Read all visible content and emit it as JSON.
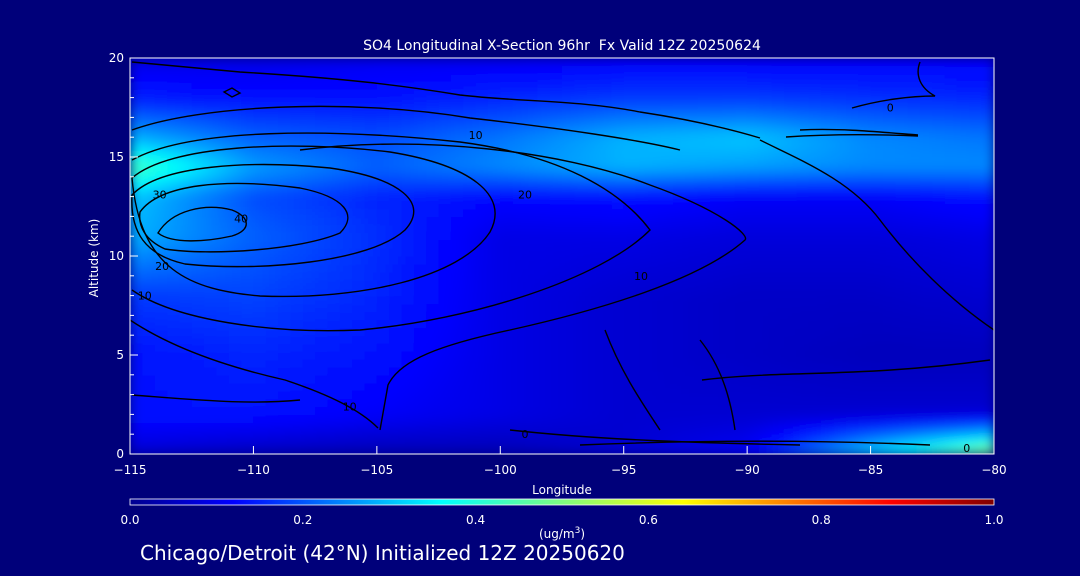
{
  "colors": {
    "background": "#00007a",
    "text": "#ffffff",
    "contour": "#000000"
  },
  "caption": "Chicago/Detroit (42°N) Initialized 12Z 20250620",
  "chart_data": {
    "type": "heatmap",
    "title": "SO4 Longitudinal X-Section 96hr  Fx Valid 12Z 20250624",
    "xlabel": "Longitude",
    "ylabel": "Altitude (km)",
    "xlim": [
      -115,
      -80
    ],
    "ylim": [
      0,
      20
    ],
    "x_ticks": [
      -115,
      -110,
      -105,
      -100,
      -95,
      -90,
      -85,
      -80
    ],
    "y_ticks": [
      0,
      5,
      10,
      15,
      20
    ],
    "colorbar": {
      "label_base": "(ug/m",
      "label_sup": "3",
      "label_end": ")",
      "range": [
        0.0,
        1.0
      ],
      "ticks": [
        "0.0",
        "0.2",
        "0.4",
        "0.6",
        "0.8",
        "1.0"
      ],
      "colormap": "jet"
    },
    "contour_labels": [
      {
        "x": -110.5,
        "y": 11.7,
        "text": "40"
      },
      {
        "x": -113.8,
        "y": 12.9,
        "text": "30"
      },
      {
        "x": -113.7,
        "y": 9.3,
        "text": "20"
      },
      {
        "x": -114.4,
        "y": 7.8,
        "text": "10"
      },
      {
        "x": -99.0,
        "y": 12.9,
        "text": "20"
      },
      {
        "x": -94.3,
        "y": 8.8,
        "text": "10"
      },
      {
        "x": -101.0,
        "y": 15.9,
        "text": "10"
      },
      {
        "x": -84.2,
        "y": 17.3,
        "text": "0"
      },
      {
        "x": -106.1,
        "y": 2.2,
        "text": "10"
      },
      {
        "x": -99.0,
        "y": 0.8,
        "text": "0"
      },
      {
        "x": -81.1,
        "y": 0.1,
        "text": "0"
      }
    ],
    "concentration_field": {
      "x": [
        -115,
        -110,
        -105,
        -100,
        -95,
        -90,
        -85,
        -80
      ],
      "y": [
        0,
        2,
        5,
        8,
        11,
        13,
        14.5,
        16,
        18,
        20
      ],
      "z": [
        [
          0.08,
          0.06,
          0.05,
          0.05,
          0.08,
          0.12,
          0.35,
          0.55
        ],
        [
          0.14,
          0.14,
          0.12,
          0.1,
          0.08,
          0.08,
          0.08,
          0.08
        ],
        [
          0.14,
          0.16,
          0.14,
          0.1,
          0.08,
          0.07,
          0.06,
          0.06
        ],
        [
          0.18,
          0.19,
          0.16,
          0.1,
          0.08,
          0.07,
          0.07,
          0.08
        ],
        [
          0.3,
          0.22,
          0.17,
          0.1,
          0.1,
          0.09,
          0.09,
          0.1
        ],
        [
          0.32,
          0.2,
          0.16,
          0.13,
          0.14,
          0.12,
          0.12,
          0.14
        ],
        [
          0.45,
          0.28,
          0.22,
          0.26,
          0.3,
          0.28,
          0.26,
          0.26
        ],
        [
          0.3,
          0.22,
          0.2,
          0.24,
          0.3,
          0.32,
          0.26,
          0.24
        ],
        [
          0.15,
          0.14,
          0.14,
          0.16,
          0.18,
          0.18,
          0.17,
          0.16
        ],
        [
          0.1,
          0.1,
          0.11,
          0.11,
          0.12,
          0.12,
          0.12,
          0.12
        ]
      ]
    }
  }
}
